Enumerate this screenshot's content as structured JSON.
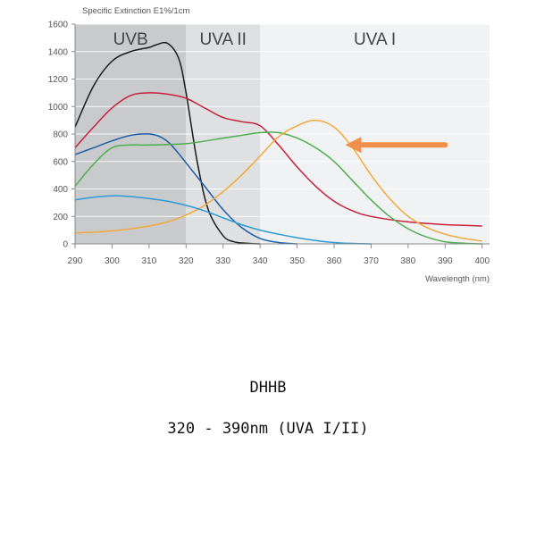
{
  "caption": {
    "title": "DHHB",
    "range": "320 - 390nm (UVA I/II)"
  },
  "chart_data": {
    "type": "line",
    "ylabel": "Specific Extinction E1%/1cm",
    "xlabel": "Wavelength (nm)",
    "xlim": [
      290,
      402
    ],
    "ylim": [
      0,
      1600
    ],
    "x_ticks": [
      290,
      300,
      310,
      320,
      330,
      340,
      350,
      360,
      370,
      380,
      390,
      400
    ],
    "y_ticks": [
      0,
      200,
      400,
      600,
      800,
      1000,
      1200,
      1400,
      1600
    ],
    "grid": "horizontal",
    "regions": [
      {
        "label": "UVB",
        "from": 290,
        "to": 320,
        "color": "#c9cacc"
      },
      {
        "label": "UVA II",
        "from": 320,
        "to": 340,
        "color": "#dee0e2"
      },
      {
        "label": "UVA I",
        "from": 340,
        "to": 402,
        "color": "#f1f2f3"
      }
    ],
    "annotation": {
      "type": "arrow",
      "from": [
        390,
        720
      ],
      "to": [
        363,
        720
      ],
      "color": "#f0904a"
    },
    "series": [
      {
        "color": "#1a1a1a",
        "x": [
          290,
          295,
          300,
          305,
          310,
          312,
          315,
          318,
          320,
          323,
          326,
          330,
          333,
          336,
          340
        ],
        "y": [
          850,
          1150,
          1330,
          1400,
          1430,
          1450,
          1460,
          1350,
          1100,
          600,
          250,
          60,
          15,
          5,
          0
        ]
      },
      {
        "color": "#c8213b",
        "x": [
          290,
          295,
          300,
          305,
          310,
          315,
          320,
          325,
          330,
          335,
          340,
          345,
          350,
          355,
          360,
          365,
          370,
          380,
          390,
          400
        ],
        "y": [
          700,
          850,
          990,
          1080,
          1100,
          1090,
          1060,
          990,
          920,
          890,
          860,
          720,
          560,
          420,
          310,
          240,
          200,
          160,
          140,
          130
        ]
      },
      {
        "color": "#1e5fa8",
        "x": [
          290,
          295,
          300,
          305,
          310,
          313,
          316,
          320,
          325,
          330,
          335,
          340,
          345,
          350
        ],
        "y": [
          650,
          700,
          750,
          790,
          800,
          780,
          720,
          590,
          420,
          250,
          120,
          40,
          10,
          0
        ]
      },
      {
        "color": "#4eae4e",
        "x": [
          290,
          295,
          300,
          305,
          310,
          320,
          330,
          335,
          340,
          345,
          350,
          355,
          360,
          365,
          370,
          375,
          380,
          385,
          390,
          395,
          400
        ],
        "y": [
          420,
          580,
          700,
          720,
          720,
          730,
          770,
          790,
          810,
          810,
          770,
          700,
          600,
          460,
          320,
          200,
          110,
          50,
          15,
          5,
          0
        ]
      },
      {
        "color": "#f2a93b",
        "x": [
          290,
          295,
          300,
          305,
          310,
          315,
          320,
          325,
          330,
          335,
          340,
          345,
          350,
          355,
          360,
          365,
          370,
          375,
          380,
          385,
          390,
          395,
          400
        ],
        "y": [
          80,
          85,
          95,
          110,
          130,
          160,
          210,
          280,
          380,
          500,
          640,
          780,
          860,
          900,
          850,
          700,
          500,
          330,
          200,
          120,
          70,
          40,
          20
        ]
      },
      {
        "color": "#2c9ad6",
        "x": [
          290,
          295,
          300,
          305,
          310,
          315,
          320,
          325,
          330,
          335,
          340,
          345,
          350,
          355,
          360,
          365,
          370
        ],
        "y": [
          320,
          340,
          350,
          345,
          330,
          310,
          280,
          240,
          190,
          140,
          100,
          70,
          45,
          25,
          10,
          3,
          0
        ]
      }
    ]
  }
}
